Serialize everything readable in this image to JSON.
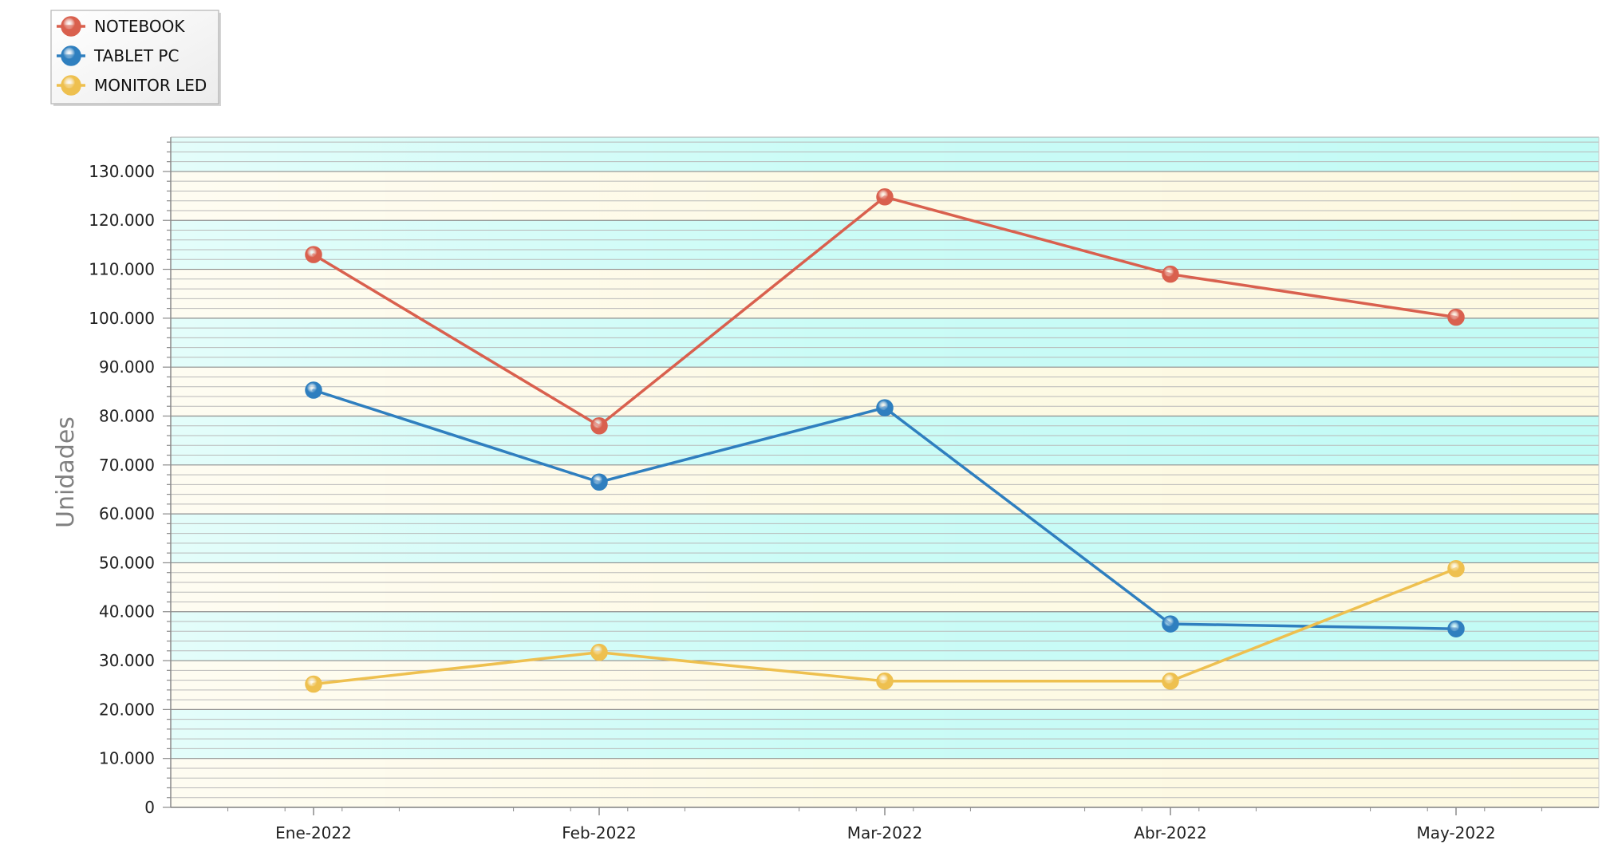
{
  "chart_data": {
    "type": "line",
    "categories": [
      "Ene-2022",
      "Feb-2022",
      "Mar-2022",
      "Abr-2022",
      "May-2022"
    ],
    "series": [
      {
        "name": "NOTEBOOK",
        "color": "#d9604e",
        "values": [
          113000,
          78000,
          124800,
          109000,
          100200
        ]
      },
      {
        "name": "TABLET PC",
        "color": "#2f7fbf",
        "values": [
          85300,
          66500,
          81700,
          37500,
          36500
        ]
      },
      {
        "name": "MONITOR LED",
        "color": "#eec04f",
        "values": [
          25200,
          31700,
          25800,
          25800,
          48800
        ]
      }
    ],
    "ylabel": "Unidades",
    "xlabel": "",
    "ylim": [
      0,
      137000
    ],
    "yticks": [
      0,
      10000,
      20000,
      30000,
      40000,
      50000,
      60000,
      70000,
      80000,
      90000,
      100000,
      110000,
      120000,
      130000
    ],
    "ytick_labels": [
      "0",
      "10.000",
      "20.000",
      "30.000",
      "40.000",
      "50.000",
      "60.000",
      "70.000",
      "80.000",
      "90.000",
      "100.000",
      "110.000",
      "120.000",
      "130.000"
    ],
    "grid": true,
    "legend_position": "top-left",
    "band_colors": [
      "#fdf9e1",
      "#c2fbf5"
    ]
  }
}
